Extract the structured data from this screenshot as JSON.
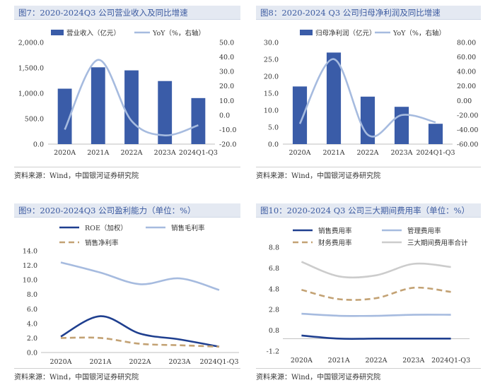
{
  "colors": {
    "bar": "#3a5ca8",
    "yoy": "#a6bbdf",
    "roe": "#1f3f8f",
    "gross": "#a6bbdf",
    "net": "#c3a274",
    "sales": "#1f3f8f",
    "mgmt": "#a6bbdf",
    "fin": "#c3a274",
    "total": "#cccccc"
  },
  "source_note": "资料来源：Wind，中国银河证券研究院",
  "chart_data": [
    {
      "type": "bar",
      "title": "图7：2020-2024Q3 公司营业收入及同比增速",
      "categories": [
        "2020A",
        "2021A",
        "2022A",
        "2023A",
        "2024Q1-Q3"
      ],
      "series": [
        {
          "name": "营业收入（亿元）",
          "type": "bar",
          "axis": "left",
          "values": [
            1090,
            1510,
            1450,
            1240,
            905
          ]
        },
        {
          "name": "YoY（%，右轴）",
          "type": "line",
          "axis": "right",
          "values": [
            -10,
            38,
            -4,
            -14,
            -7
          ]
        }
      ],
      "ylim": [
        0,
        2000
      ],
      "yticks": [
        "0.0",
        "500.0",
        "1,000.0",
        "1,500.0",
        "2,000.0"
      ],
      "y2lim": [
        -20,
        50
      ],
      "y2ticks": [
        "-20.0",
        "-10.0",
        "0.0",
        "10.0",
        "20.0",
        "30.0",
        "40.0",
        "50.0"
      ]
    },
    {
      "type": "bar",
      "title": "图8：2020-2024 Q3 公司归母净利润及同比增速",
      "categories": [
        "2020A",
        "2021A",
        "2022A",
        "2023A",
        "2024Q1-Q3"
      ],
      "series": [
        {
          "name": "归母净利润（亿元）",
          "type": "bar",
          "axis": "left",
          "values": [
            17,
            27,
            14,
            11,
            6
          ]
        },
        {
          "name": "YoY（%，右轴）",
          "type": "line",
          "axis": "right",
          "values": [
            -32,
            57,
            -47,
            -20,
            -30
          ]
        }
      ],
      "ylim": [
        0,
        30
      ],
      "yticks": [
        "0.0",
        "5.0",
        "10.0",
        "15.0",
        "20.0",
        "25.0",
        "30.0"
      ],
      "y2lim": [
        -60,
        80
      ],
      "y2ticks": [
        "-60.00",
        "-40.00",
        "-20.00",
        "0.00",
        "20.00",
        "40.00",
        "60.00",
        "80.00"
      ]
    },
    {
      "type": "line",
      "title": "图9：2020-2024Q3 公司盈利能力（单位：%）",
      "categories": [
        "2020A",
        "2021A",
        "2022A",
        "2023A",
        "2024Q1-Q3"
      ],
      "series": [
        {
          "name": "ROE（加权）",
          "values": [
            2.2,
            5.0,
            2.6,
            1.8,
            0.8
          ]
        },
        {
          "name": "销售毛利率",
          "values": [
            12.4,
            11.0,
            9.4,
            10.2,
            8.6
          ]
        },
        {
          "name": "销售净利率",
          "values": [
            2.0,
            2.0,
            1.2,
            1.0,
            0.8
          ]
        }
      ],
      "ylim": [
        0,
        14
      ],
      "yticks": [
        "0.0",
        "2.0",
        "4.0",
        "6.0",
        "8.0",
        "10.0",
        "12.0",
        "14.0"
      ]
    },
    {
      "type": "line",
      "title": "图10：2020-2024 Q3 公司三大期间费用率（单位：%）",
      "categories": [
        "2020A",
        "2021A",
        "2022A",
        "2023A",
        "2024Q1-Q3"
      ],
      "series": [
        {
          "name": "销售费用率",
          "values": [
            0.3,
            0.0,
            0.0,
            0.0,
            0.0
          ]
        },
        {
          "name": "管理费用率",
          "values": [
            2.4,
            2.2,
            2.2,
            2.3,
            2.3
          ]
        },
        {
          "name": "财务费用率",
          "values": [
            4.7,
            3.8,
            3.9,
            4.9,
            4.5
          ]
        },
        {
          "name": "三大期间费用率合计",
          "values": [
            7.4,
            6.0,
            6.1,
            7.2,
            6.9
          ]
        }
      ],
      "ylim": [
        -1.2,
        8.8
      ],
      "yticks": [
        "-1.2",
        "0.8",
        "2.8",
        "4.8",
        "6.8",
        "8.8"
      ]
    }
  ]
}
